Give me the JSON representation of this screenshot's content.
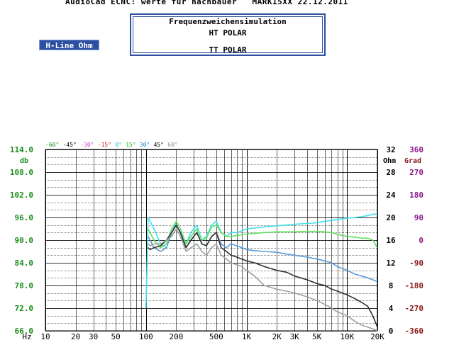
{
  "header": {
    "title": "AudioCad ECNC: werte für nachbauer   MARK15XX 22.12.2011"
  },
  "sim_box": {
    "title": "Frequenzweichensimulation",
    "line1": "HT POLAR",
    "line2": "TT POLAR"
  },
  "hline_button": {
    "label": "H-Line Ohm"
  },
  "colors": {
    "db_axis": "#1a8f1a",
    "ohm_axis": "#000000",
    "grad_axis": "#8b1a8b",
    "grad_neg": "#8b1a1a",
    "grid": "#000000",
    "series_cyan": "#40e0e8",
    "series_green": "#60e060",
    "series_blue": "#5a9ad8",
    "series_dark": "#303030",
    "series_gray": "#a0a0a0"
  },
  "chart_data": {
    "type": "line",
    "x_scale": "log",
    "xlim": [
      10,
      20000
    ],
    "ylim": [
      66,
      114
    ],
    "y_ticks": [
      "66.0",
      "72.0",
      "78.0",
      "84.0",
      "90.0",
      "96.0",
      "102.0",
      "108.0",
      "114.0"
    ],
    "y_unit": "db",
    "x_ticks": [
      {
        "value": 10,
        "label": "10"
      },
      {
        "value": 20,
        "label": "20"
      },
      {
        "value": 30,
        "label": "30"
      },
      {
        "value": 50,
        "label": "50"
      },
      {
        "value": 100,
        "label": "100"
      },
      {
        "value": 200,
        "label": "200"
      },
      {
        "value": 500,
        "label": "500"
      },
      {
        "value": 1000,
        "label": "1K"
      },
      {
        "value": 2000,
        "label": "2K"
      },
      {
        "value": 3000,
        "label": "3K"
      },
      {
        "value": 5000,
        "label": "5K"
      },
      {
        "value": 10000,
        "label": "10K"
      },
      {
        "value": 20000,
        "label": "20K"
      }
    ],
    "x_unit": "Hz",
    "ohm_axis": {
      "unit": "Ohm",
      "ticks": [
        "0",
        "4",
        "8",
        "12",
        "16",
        "20",
        "24",
        "28",
        "32"
      ]
    },
    "grad_axis": {
      "unit": "Grad",
      "ticks": [
        "-360",
        "-270",
        "-180",
        "-90",
        "0",
        "90",
        "180",
        "270",
        "360"
      ]
    },
    "legend": [
      {
        "label": "-60°",
        "color": "#1a8f1a"
      },
      {
        "label": "-45°",
        "color": "#000000"
      },
      {
        "label": "-30°",
        "color": "#c040c0"
      },
      {
        "label": "-15°",
        "color": "#c02020"
      },
      {
        "label": "0°",
        "color": "#20c0c0"
      },
      {
        "label": "15°",
        "color": "#20b020"
      },
      {
        "label": "30°",
        "color": "#2080c0"
      },
      {
        "label": "45°",
        "color": "#000000"
      },
      {
        "label": "60°",
        "color": "#909090"
      }
    ],
    "series": [
      {
        "color": "#40e0e8",
        "x": [
          100,
          105,
          110,
          120,
          140,
          160,
          180,
          200,
          220,
          250,
          280,
          320,
          360,
          400,
          450,
          500,
          560,
          630,
          700,
          800,
          900,
          1000,
          1200,
          1500,
          2000,
          2500,
          3000,
          4000,
          5000,
          6000,
          7000,
          8000,
          10000,
          12000,
          14000,
          16000,
          18000,
          20000
        ],
        "y": [
          72,
          96,
          95,
          93,
          89,
          88,
          92,
          95,
          93,
          89,
          92,
          94,
          90,
          91,
          94,
          95,
          92,
          91,
          92,
          92,
          92.5,
          93,
          93.2,
          93.5,
          93.8,
          94,
          94.2,
          94.4,
          94.6,
          95,
          95.2,
          95.5,
          95.8,
          96,
          96.2,
          96.5,
          96.8,
          97
        ]
      },
      {
        "color": "#60e060",
        "x": [
          105,
          110,
          120,
          140,
          160,
          180,
          200,
          220,
          250,
          280,
          320,
          360,
          400,
          450,
          500,
          560,
          630,
          700,
          800,
          900,
          1000,
          1200,
          1500,
          2000,
          2500,
          3000,
          4000,
          5000,
          6000,
          7000,
          8000,
          10000,
          12000,
          14000,
          16000,
          18000,
          20000
        ],
        "y": [
          93,
          92,
          90,
          88,
          89,
          93,
          95,
          93,
          89,
          91,
          93,
          90,
          90.5,
          93.5,
          94,
          92,
          91,
          91,
          91.2,
          91.4,
          91.6,
          91.8,
          92,
          92.2,
          92.2,
          92.2,
          92.3,
          92.3,
          92.2,
          92,
          91.5,
          91,
          90.8,
          90.5,
          90.5,
          90,
          88
        ]
      },
      {
        "color": "#5a9ad8",
        "x": [
          105,
          110,
          120,
          140,
          160,
          180,
          200,
          220,
          250,
          280,
          320,
          360,
          400,
          450,
          500,
          560,
          630,
          700,
          800,
          900,
          1000,
          1200,
          1500,
          2000,
          2500,
          3000,
          4000,
          5000,
          6000,
          7000,
          8000,
          10000,
          12000,
          14000,
          16000,
          18000,
          20000
        ],
        "y": [
          91,
          90,
          88,
          87,
          88,
          92,
          94,
          92,
          88,
          90,
          92,
          89,
          88.5,
          91,
          92,
          89,
          88,
          89,
          88.5,
          88,
          87.5,
          87.2,
          87,
          86.8,
          86.3,
          86,
          85.5,
          85,
          84.5,
          84,
          83,
          82,
          81,
          80.5,
          80,
          79.5,
          79
        ]
      },
      {
        "color": "#303030",
        "x": [
          105,
          110,
          120,
          140,
          160,
          180,
          200,
          220,
          250,
          280,
          320,
          360,
          400,
          450,
          500,
          560,
          630,
          700,
          800,
          900,
          1000,
          1200,
          1500,
          2000,
          2500,
          3000,
          4000,
          5000,
          6000,
          7000,
          8000,
          10000,
          12000,
          14000,
          16000,
          18000,
          20000
        ],
        "y": [
          88,
          87.5,
          88,
          88.5,
          90,
          92,
          94,
          92,
          88,
          90,
          92,
          89,
          88.5,
          91,
          92,
          88,
          87,
          86,
          85.5,
          85,
          84.5,
          84,
          83,
          82,
          81.5,
          80.5,
          79.5,
          78.5,
          78,
          77,
          76.5,
          75.5,
          74.5,
          73.5,
          72.5,
          70,
          67
        ]
      },
      {
        "color": "#a0a0a0",
        "x": [
          105,
          110,
          120,
          140,
          160,
          180,
          200,
          220,
          250,
          280,
          320,
          360,
          400,
          450,
          500,
          560,
          630,
          700,
          800,
          900,
          1000,
          1200,
          1500,
          2000,
          2500,
          3000,
          4000,
          5000,
          6000,
          7000,
          8000,
          10000,
          12000,
          14000,
          16000,
          18000,
          20000
        ],
        "y": [
          89,
          88.5,
          89,
          89,
          90,
          91,
          93,
          91,
          87,
          88,
          89,
          87,
          86,
          88,
          89,
          86,
          85,
          84,
          83.5,
          83,
          82,
          80.5,
          78,
          77,
          76.5,
          76,
          75,
          74,
          73,
          72,
          71,
          70,
          68.5,
          67.5,
          67,
          66.5,
          66
        ]
      }
    ]
  }
}
